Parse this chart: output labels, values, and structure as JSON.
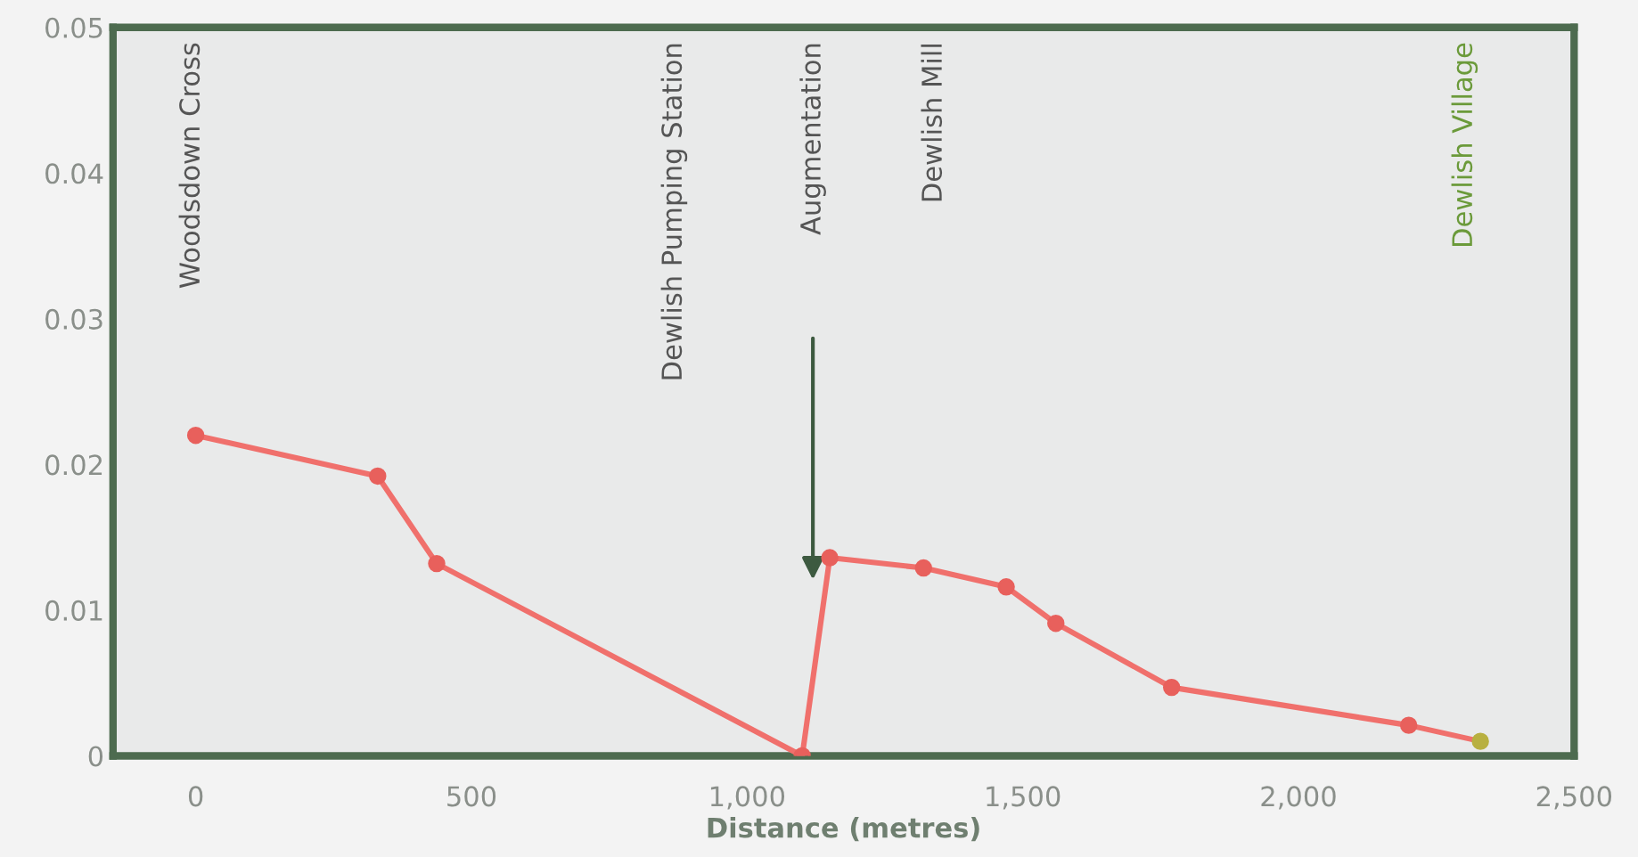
{
  "chart_data": {
    "type": "line",
    "xlabel": "Distance (metres)",
    "x": [
      0,
      330,
      437,
      1100,
      1150,
      1320,
      1470,
      1560,
      1770,
      2200,
      2330
    ],
    "series": [
      {
        "color": "#f0706c",
        "values": [
          0.022,
          0.0192,
          0.0132,
          0,
          0.0136,
          0.0129,
          0.0116,
          0.0091,
          0.0047,
          0.0021,
          0.001
        ],
        "colors": [
          "#e8605c",
          "#e8605c",
          "#e8605c",
          "#e8605c",
          "#e8605c",
          "#e8605c",
          "#e8605c",
          "#e8605c",
          "#e8605c",
          "#e8605c",
          "#b8b040"
        ]
      }
    ],
    "marker": "circle",
    "line_style": "solid",
    "xlim": [
      -150,
      2500
    ],
    "xticks": [
      0,
      500,
      {
        "value": 1000,
        "label": "1,000"
      },
      {
        "value": 1500,
        "label": "1,500"
      },
      {
        "value": 2000,
        "label": "2,000"
      },
      {
        "value": 2500,
        "label": "2,500"
      }
    ],
    "ylim": [
      0,
      0.05
    ],
    "yticks": [
      0,
      0.01,
      0.02,
      0.03,
      0.04,
      0.05
    ],
    "grid": false,
    "annotations": [
      "Woodsdown Cross",
      "Dewlish Pumping Station",
      "Augmentation",
      "Dewlish Mill",
      "Dewlish Village"
    ]
  }
}
